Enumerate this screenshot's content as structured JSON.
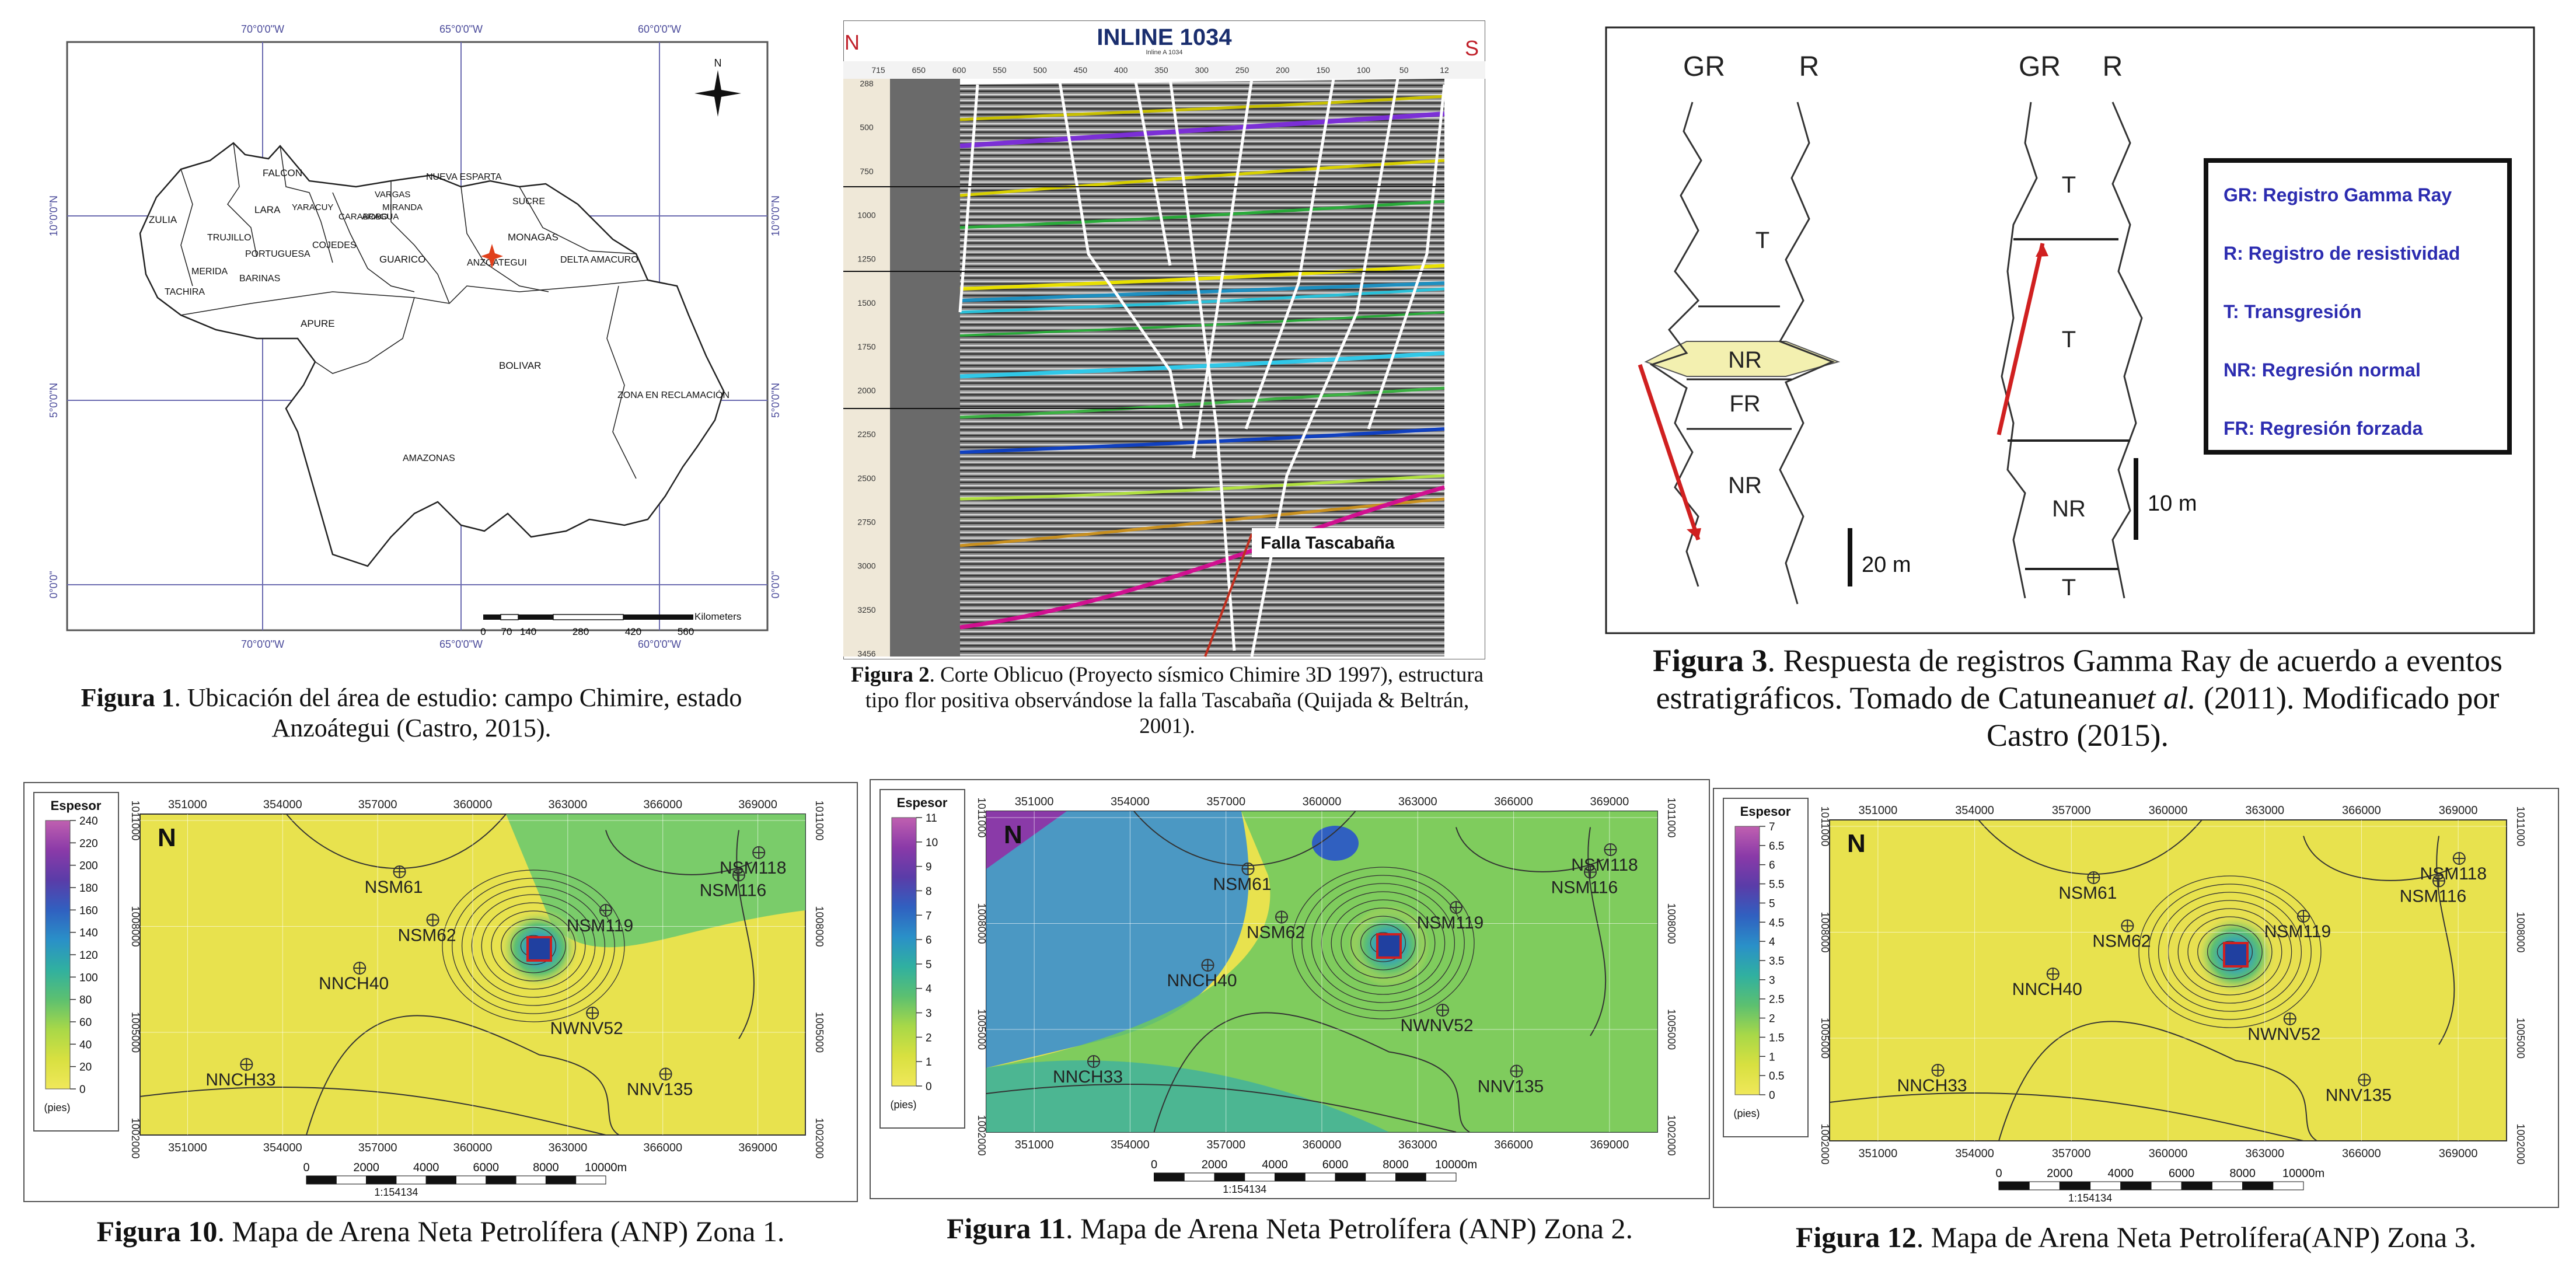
{
  "figure1": {
    "lon_labels": [
      "70°0'0\"W",
      "65°0'0\"W",
      "60°0'0\"W"
    ],
    "lat_labels": [
      "10°0'0\"N",
      "5°0'0\"N",
      "0°0'0\""
    ],
    "states": [
      "FALCON",
      "ZULIA",
      "LARA",
      "YARACUY",
      "CARABOBO",
      "ARAGUA",
      "MIRANDA",
      "VARGAS",
      "NUEVA ESPARTA",
      "SUCRE",
      "MONAGAS",
      "DELTA AMACURO",
      "TRUJILLO",
      "PORTUGUESA",
      "COJEDES",
      "GUARICO",
      "ANZOATEGUI",
      "MERIDA",
      "BARINAS",
      "TACHIRA",
      "APURE",
      "BOLIVAR",
      "ZONA EN RECLAMACIÓN",
      "AMAZONAS"
    ],
    "north": "N",
    "scale_unit": "Kilometers",
    "scale_ticks": [
      "0",
      "70",
      "140",
      "280",
      "420",
      "560"
    ],
    "caption_label": "Figura 1",
    "caption_text": ". Ubicación del área de estudio: campo Chimire, estado Anzoátegui (Castro, 2015)."
  },
  "figure2": {
    "title": "INLINE 1034",
    "subtitle": "Inline A 1034",
    "left_letter": "N",
    "right_letter": "S",
    "top_ticks": [
      "715",
      "650",
      "600",
      "550",
      "500",
      "450",
      "400",
      "350",
      "300",
      "250",
      "200",
      "150",
      "100",
      "50",
      "12"
    ],
    "depth_ticks": [
      "288",
      "500",
      "750",
      "1000",
      "1250",
      "1500",
      "1750",
      "2000",
      "2250",
      "2500",
      "2750",
      "3000",
      "3250",
      "3456"
    ],
    "fault_label": "Falla Tascabaña",
    "caption_label": "Figura 2",
    "caption_text": ". Corte Oblicuo (Proyecto sísmico Chimire 3D 1997), estructura tipo flor positiva observándose la falla Tascabaña (Quijada & Beltrán, 2001).",
    "colors": {
      "purple": "#8a2be2",
      "yellow": "#e8e000",
      "green": "#3cb043",
      "cyan": "#2ab8d8",
      "blue": "#1040c0",
      "magenta": "#d01090",
      "orange": "#c87810"
    }
  },
  "figure3": {
    "headers": [
      "GR",
      "R",
      "GR",
      "R"
    ],
    "left_units": [
      "T",
      "NR",
      "FR",
      "NR"
    ],
    "right_units": [
      "T",
      "T",
      "NR",
      "T"
    ],
    "scale_left": "20 m",
    "scale_right": "10 m",
    "legend": [
      "GR: Registro Gamma Ray",
      "R: Registro de resistividad",
      "T: Transgresión",
      "NR: Regresión normal",
      "FR: Regresión forzada"
    ],
    "caption_label": "Figura 3",
    "caption_text_1": ". Respuesta de registros Gamma Ray de acuerdo a eventos estratigráficos. Tomado de Catuneanu",
    "caption_italic": "et al.",
    "caption_text_2": " (2011). Modificado por Castro (2015)."
  },
  "maps": [
    {
      "legend_title": "Espesor",
      "legend_unit": "(pies)",
      "legend_ticks": [
        "240",
        "220",
        "200",
        "180",
        "160",
        "140",
        "120",
        "100",
        "80",
        "60",
        "40",
        "20",
        "0"
      ],
      "x_ticks": [
        "351000",
        "354000",
        "357000",
        "360000",
        "363000",
        "366000",
        "369000"
      ],
      "y_ticks": [
        "1011000",
        "1008000",
        "1005000",
        "1002000"
      ],
      "wells": [
        "NSM61",
        "NSM62",
        "NSM118",
        "NSM116",
        "NSM119",
        "NNCH40",
        "NWNV52",
        "NNCH33",
        "NNV135"
      ],
      "scale_ticks": [
        "0",
        "2000",
        "4000",
        "6000",
        "8000",
        "10000m"
      ],
      "scale_ratio": "1:154134",
      "caption_label": "Figura 10",
      "caption_text": ". Mapa de Arena Neta Petrolífera (ANP) Zona 1."
    },
    {
      "legend_title": "Espesor",
      "legend_unit": "(pies)",
      "legend_ticks": [
        "11",
        "10",
        "9",
        "8",
        "7",
        "6",
        "5",
        "4",
        "3",
        "2",
        "1",
        "0"
      ],
      "x_ticks": [
        "351000",
        "354000",
        "357000",
        "360000",
        "363000",
        "366000",
        "369000"
      ],
      "y_ticks": [
        "1011000",
        "1008000",
        "1005000",
        "1002000"
      ],
      "wells": [
        "NSM61",
        "NSM62",
        "NSM118",
        "NSM116",
        "NSM119",
        "NNCH40",
        "NWNV52",
        "NNCH33",
        "NNV135"
      ],
      "scale_ticks": [
        "0",
        "2000",
        "4000",
        "6000",
        "8000",
        "10000m"
      ],
      "scale_ratio": "1:154134",
      "caption_label": "Figura 11",
      "caption_text": ". Mapa de Arena Neta Petrolífera (ANP) Zona 2."
    },
    {
      "legend_title": "Espesor",
      "legend_unit": "(pies)",
      "legend_ticks": [
        "7",
        "6.5",
        "6",
        "5.5",
        "5",
        "4.5",
        "4",
        "3.5",
        "3",
        "2.5",
        "2",
        "1.5",
        "1",
        "0.5",
        "0"
      ],
      "x_ticks": [
        "351000",
        "354000",
        "357000",
        "360000",
        "363000",
        "366000",
        "369000"
      ],
      "y_ticks": [
        "1011000",
        "1008000",
        "1005000",
        "1002000"
      ],
      "wells": [
        "NSM61",
        "NSM62",
        "NSM118",
        "NSM116",
        "NSM119",
        "NNCH40",
        "NWNV52",
        "NNCH33",
        "NNV135"
      ],
      "scale_ticks": [
        "0",
        "2000",
        "4000",
        "6000",
        "8000",
        "10000m"
      ],
      "scale_ratio": "1:154134",
      "caption_label": "Figura 12",
      "caption_text": ". Mapa de Arena Neta Petrolífera(ANP) Zona 3."
    }
  ]
}
